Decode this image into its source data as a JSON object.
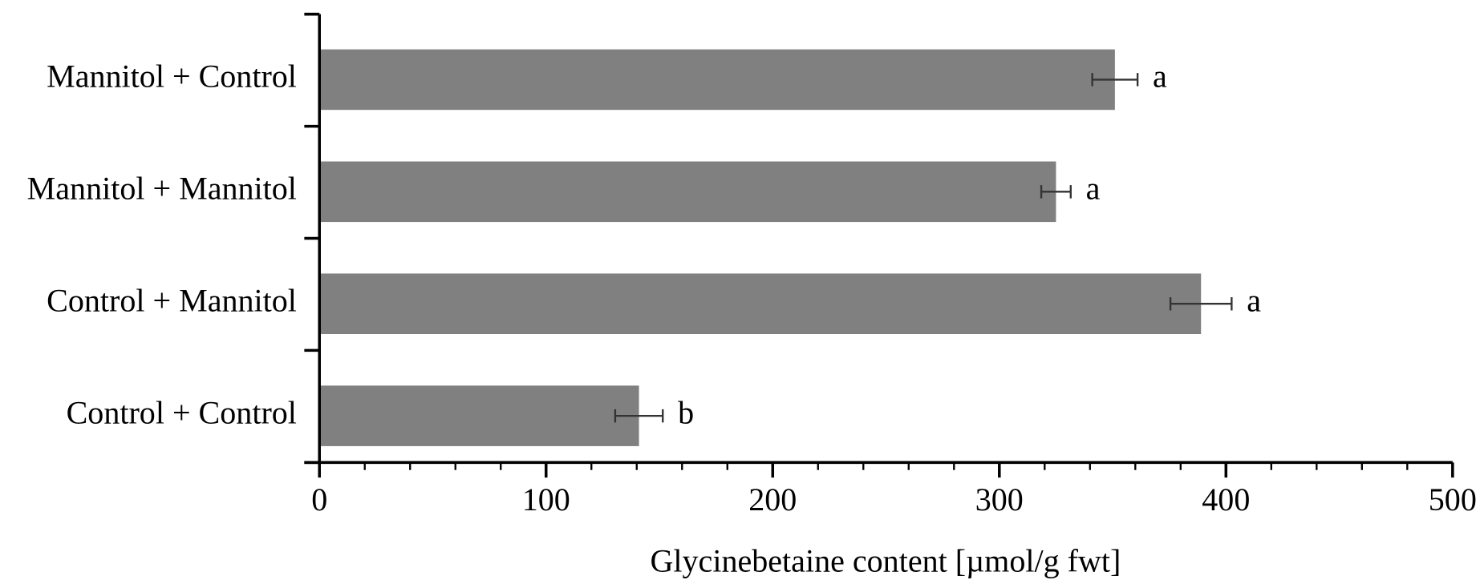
{
  "chart_data": {
    "type": "hbar",
    "x_label": "Glycinebetaine content [µmol/g fwt]",
    "categories": [
      "Mannitol + Control",
      "Mannitol + Mannitol",
      "Control + Mannitol",
      "Control + Control"
    ],
    "values": [
      351,
      325,
      389,
      141
    ],
    "errors": [
      10,
      6.5,
      13.5,
      10.5
    ],
    "annotations": [
      "a",
      "a",
      "a",
      "b"
    ],
    "color": "#808080",
    "xlim": [
      0,
      500
    ],
    "xticks": [
      0,
      100,
      200,
      300,
      400,
      500
    ],
    "x_minor_ticks": [
      20,
      40,
      60,
      80,
      120,
      140,
      160,
      180,
      220,
      240,
      260,
      280,
      320,
      340,
      360,
      380,
      420,
      440,
      460,
      480
    ],
    "grid": false
  }
}
